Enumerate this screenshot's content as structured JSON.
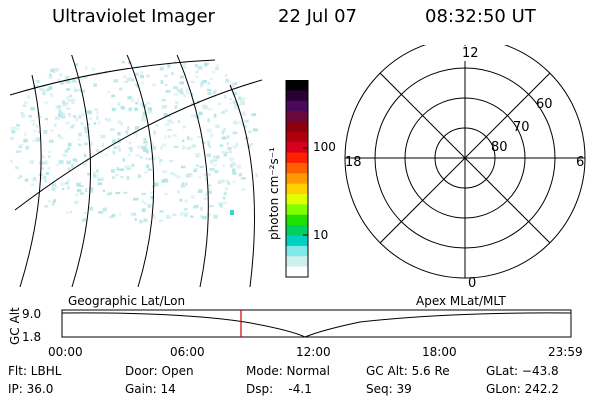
{
  "header": {
    "title": "Ultraviolet Imager",
    "date": "22 Jul 07",
    "time": "08:32:50 UT"
  },
  "colorbar": {
    "unit_label": "photon cm⁻²s⁻¹",
    "ticks": [
      "100",
      "10"
    ],
    "colors": [
      "#000000",
      "#2a0033",
      "#4a0a5a",
      "#6a0a3a",
      "#8a0010",
      "#b00010",
      "#d8001a",
      "#ff2000",
      "#ff6000",
      "#ff9a00",
      "#ffd000",
      "#e0ff00",
      "#80ff00",
      "#20e000",
      "#00d060",
      "#00d0c0",
      "#80e8e8",
      "#d0f0f0",
      "#ffffff"
    ]
  },
  "polar": {
    "mlt_labels": {
      "top": "12",
      "left": "18",
      "right": "6",
      "bottom": "0"
    },
    "lat_labels": [
      "60",
      "70",
      "80"
    ]
  },
  "altitude_plot": {
    "left_title": "Geographic Lat/Lon",
    "right_title": "Apex MLat/MLT",
    "ylabel": "GC Alt",
    "yticks": [
      "9.0",
      "1.8"
    ],
    "xticks": [
      "00:00",
      "06:00",
      "12:00",
      "18:00",
      "23:59"
    ],
    "marker_color": "#d00000"
  },
  "info": {
    "flt": "Flt: LBHL",
    "ip": "IP: 36.0",
    "door": "Door: Open",
    "gain": "Gain: 14",
    "mode": "Mode: Normal",
    "dsp": "Dsp:    -4.1",
    "gc_alt": "GC Alt: 5.6 Re",
    "seq": "Seq: 39",
    "glat": "GLat: −43.8",
    "glon": "GLon: 242.2"
  }
}
